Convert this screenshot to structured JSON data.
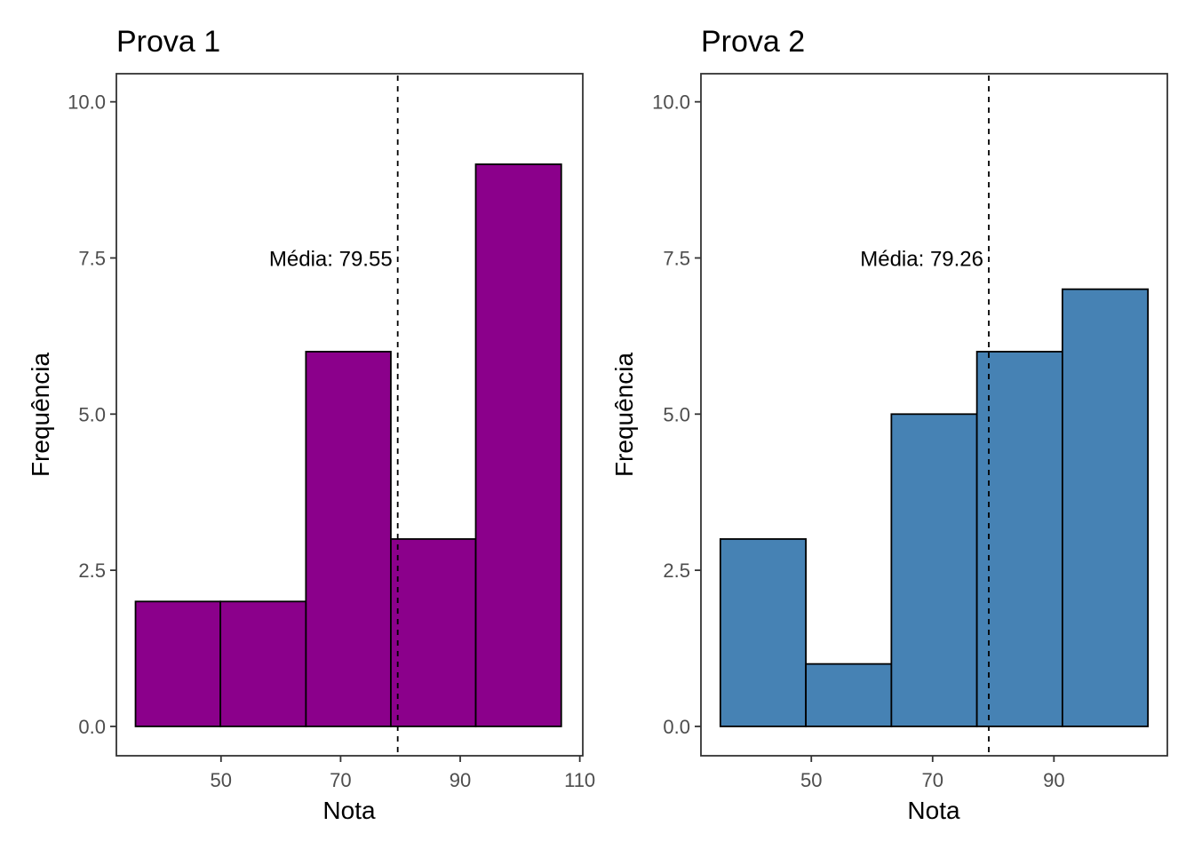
{
  "chart_data": [
    {
      "type": "bar",
      "title": "Prova 1",
      "xlabel": "Nota",
      "ylabel": "Frequência",
      "fill_color": "#8b008b",
      "bins": [
        {
          "x_start": 35.7,
          "x_end": 49.9,
          "value": 2
        },
        {
          "x_start": 49.9,
          "x_end": 64.2,
          "value": 2
        },
        {
          "x_start": 64.2,
          "x_end": 78.4,
          "value": 6
        },
        {
          "x_start": 78.4,
          "x_end": 92.6,
          "value": 3
        },
        {
          "x_start": 92.6,
          "x_end": 106.9,
          "value": 9
        }
      ],
      "mean": 79.55,
      "annotation": "Média: 79.55",
      "xlim": [
        32.5,
        110.5
      ],
      "ylim": [
        -0.47,
        10.45
      ],
      "x_ticks": [
        50,
        70,
        90,
        110
      ],
      "y_ticks": [
        0.0,
        2.5,
        5.0,
        7.5,
        10.0
      ],
      "y_tick_labels": [
        "0.0",
        "2.5",
        "5.0",
        "7.5",
        "10.0"
      ],
      "grid": false
    },
    {
      "type": "bar",
      "title": "Prova 2",
      "xlabel": "Nota",
      "ylabel": "Frequência",
      "fill_color": "#4682b4",
      "bins": [
        {
          "x_start": 35.0,
          "x_end": 49.1,
          "value": 3
        },
        {
          "x_start": 49.1,
          "x_end": 63.2,
          "value": 1
        },
        {
          "x_start": 63.2,
          "x_end": 77.3,
          "value": 5
        },
        {
          "x_start": 77.3,
          "x_end": 91.4,
          "value": 6
        },
        {
          "x_start": 91.4,
          "x_end": 105.5,
          "value": 7
        }
      ],
      "mean": 79.26,
      "annotation": "Média: 79.26",
      "xlim": [
        31.8,
        108.7
      ],
      "ylim": [
        -0.47,
        10.45
      ],
      "x_ticks": [
        50,
        70,
        90
      ],
      "y_ticks": [
        0.0,
        2.5,
        5.0,
        7.5,
        10.0
      ],
      "y_tick_labels": [
        "0.0",
        "2.5",
        "5.0",
        "7.5",
        "10.0"
      ],
      "grid": false
    }
  ]
}
